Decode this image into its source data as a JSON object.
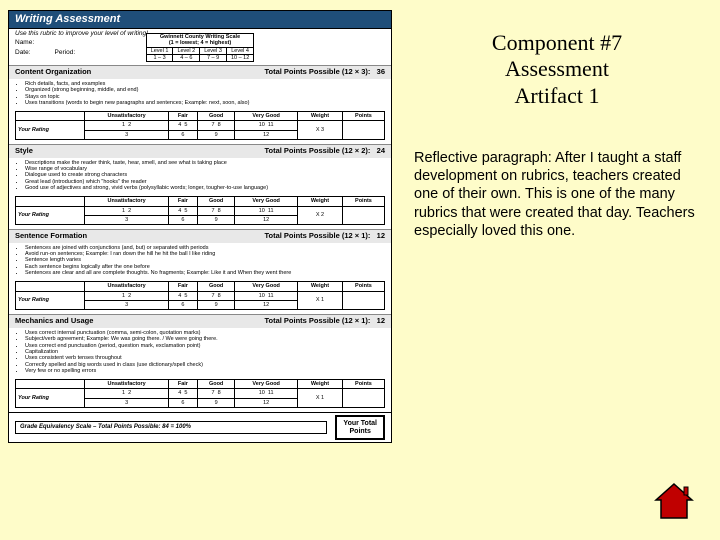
{
  "right": {
    "heading_l1": "Component #7",
    "heading_l2": "Assessment",
    "heading_l3": "Artifact 1",
    "paragraph": "Reflective paragraph: After I taught a staff development on rubrics, teachers created one of their own. This is one of the many rubrics that were created that day. Teachers especially loved this one."
  },
  "doc": {
    "title": "Writing Assessment",
    "subtitle": "Use this rubric to improve your level of writing!",
    "name_label": "Name:",
    "date_label": "Date:",
    "period_label": "Period:",
    "scale_caption": "Gwinnett County Writing Scale",
    "scale_note": "(1 = lowest; 4 = highest)",
    "scale_headers": [
      "Level 1",
      "Level 2",
      "Level 3",
      "Level 4"
    ],
    "scale_ranges": [
      "1 – 3",
      "4 – 6",
      "7 – 9",
      "10 – 12"
    ],
    "points_possible_label": "Total Points Possible (12 ×",
    "rating_label": "Your Rating",
    "rating_headers": [
      "Unsatisfactory",
      "Fair",
      "Good",
      "Very Good",
      "Weight",
      "Points"
    ],
    "rating_nums_top": [
      "1",
      "2",
      "4",
      "5",
      "7",
      "8",
      "10",
      "11"
    ],
    "rating_nums_bot": [
      "",
      "3",
      "",
      "6",
      "",
      "9",
      "",
      "12"
    ],
    "grade_scale": "Grade Equivalency Scale – Total Points Possible: 84 = 100%",
    "total_box_l1": "Your Total",
    "total_box_l2": "Points",
    "sections": [
      {
        "name": "Content Organization",
        "mult": "3):",
        "pts": "36",
        "weight": "X 3",
        "bullets": [
          "Rich details, facts, and examples",
          "Organized (strong beginning, middle, and end)",
          "Stays on topic",
          "Uses transitions (words to begin new paragraphs and sentences; Example: next, soon, also)"
        ]
      },
      {
        "name": "Style",
        "mult": "2):",
        "pts": "24",
        "weight": "X 2",
        "bullets": [
          "Descriptions make the reader think, taste, hear, smell, and see what is taking place",
          "Wise range of vocabulary",
          "Dialogue used to create strong characters",
          "Great lead (introduction) which \"hooks\" the reader",
          "Good use of adjectives and strong, vivid verbs (polysyllabic words; longer, tougher-to-use language)"
        ]
      },
      {
        "name": "Sentence Formation",
        "mult": "1):",
        "pts": "12",
        "weight": "X 1",
        "bullets": [
          "Sentences are joined with conjunctions (and, but) or separated with periods",
          "Avoid run-on sentences; Example: I ran down the hill he hit the ball I like riding",
          "Sentence length varies",
          "Each sentence begins logically after the one before",
          "Sentences are clear and all are complete thoughts. No fragments; Example: Like it and When they went there"
        ]
      },
      {
        "name": "Mechanics and Usage",
        "mult": "1):",
        "pts": "12",
        "weight": "X 1",
        "bullets": [
          "Uses correct internal punctuation (comma, semi-colon, quotation marks)",
          "Subject/verb agreement; Example: We was going there. / We were going there.",
          "Uses correct end punctuation (period, question mark, exclamation point)",
          "Capitalization",
          "Uses consistent verb tenses throughout",
          "Correctly spelled and big words used in class (use dictionary/spell check)",
          "Very few or no spelling errors"
        ]
      }
    ]
  },
  "styling": {
    "bg": "#fefcc9",
    "doc_title_bg": "#1f4e79",
    "house_fill": "#c00000",
    "house_stroke": "#000000"
  }
}
